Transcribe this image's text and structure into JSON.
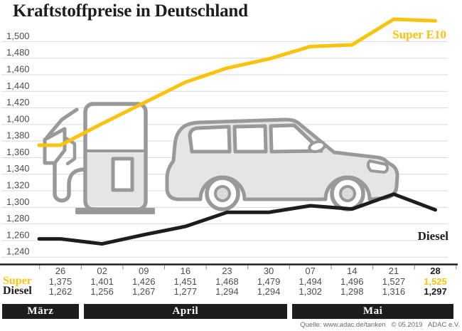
{
  "header": {
    "title": "Kraftstoffpreise in Deutschland"
  },
  "chart_data": {
    "type": "line",
    "title": "Kraftstoffpreise in Deutschland",
    "x_labels": [
      "26",
      "02",
      "09",
      "16",
      "23",
      "30",
      "07",
      "14",
      "21",
      "28"
    ],
    "months": [
      {
        "label": "März",
        "span": 1
      },
      {
        "label": "April",
        "span": 5
      },
      {
        "label": "Mai",
        "span": 4
      }
    ],
    "ylim": [
      1240,
      1500
    ],
    "y_tick_step": 20,
    "grid": true,
    "legend_position": "labels-at-line-end",
    "series": [
      {
        "name": "Super E10",
        "color": "#FBC20E",
        "values": [
          1375,
          1401,
          1426,
          1451,
          1468,
          1479,
          1494,
          1496,
          1527,
          1525
        ]
      },
      {
        "name": "Diesel",
        "color": "#1D1D1B",
        "values": [
          1262,
          1256,
          1267,
          1277,
          1294,
          1294,
          1302,
          1298,
          1316,
          1297
        ]
      }
    ]
  },
  "table": {
    "dates": [
      "26",
      "02",
      "09",
      "16",
      "23",
      "30",
      "07",
      "14",
      "21",
      "28"
    ],
    "rows": [
      {
        "label": "Super",
        "values": [
          "1,375",
          "1,401",
          "1,426",
          "1,451",
          "1,468",
          "1,479",
          "1,494",
          "1,496",
          "1,527",
          "1,525"
        ]
      },
      {
        "label": "Diesel",
        "values": [
          "1,262",
          "1,256",
          "1,267",
          "1,277",
          "1,294",
          "1,294",
          "1,302",
          "1,298",
          "1,316",
          "1,297"
        ]
      }
    ]
  },
  "footer": {
    "source_line": "Quelle: www.adac.de/tanken   © 05.2019   ADAC e.V."
  },
  "colors": {
    "accent_yellow": "#FBC20E",
    "ink": "#1D1D1B",
    "grid": "#D9D9D9",
    "muted_text": "#4D4D4D",
    "illustration_stroke": "#97999B",
    "illustration_fill": "#E4E5E6"
  }
}
